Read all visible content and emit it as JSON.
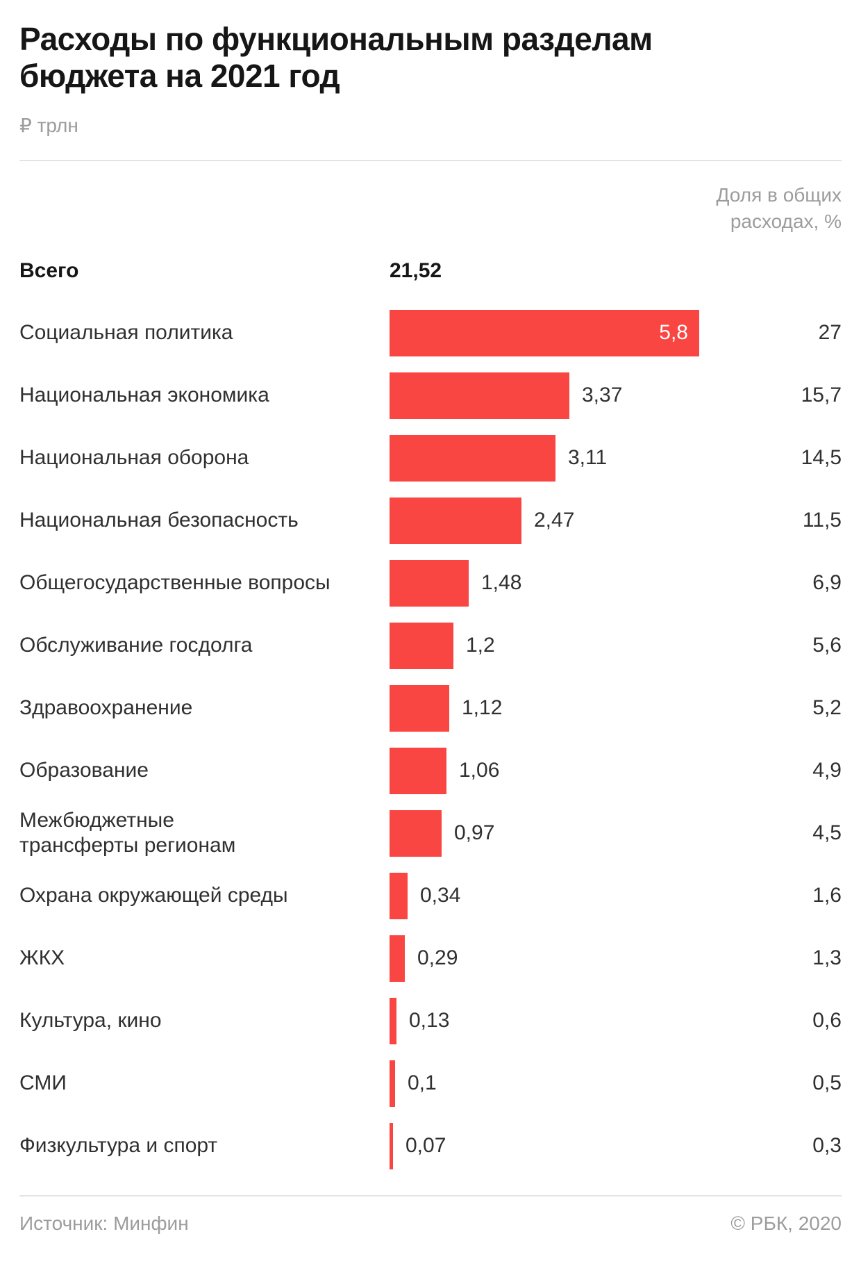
{
  "header": {
    "title": "Расходы по функциональным разделам\nбюджета на 2021 год",
    "units": "₽ трлн",
    "share_note": "Доля в общих\nрасходах, %"
  },
  "total_row": {
    "label": "Всего",
    "value_label": "21,52"
  },
  "chart_data": {
    "type": "bar",
    "orientation": "horizontal",
    "title": "Расходы по функциональным разделам бюджета на 2021 год",
    "unit": "₽ трлн",
    "xlim": [
      0,
      5.8
    ],
    "total": {
      "label": "Всего",
      "value": 21.52
    },
    "share_column_header": "Доля в общих расходах, %",
    "rows": [
      {
        "label": "Социальная политика",
        "value": 5.8,
        "value_label": "5,8",
        "share_pct": 27,
        "share_label": "27"
      },
      {
        "label": "Национальная экономика",
        "value": 3.37,
        "value_label": "3,37",
        "share_pct": 15.7,
        "share_label": "15,7"
      },
      {
        "label": "Национальная оборона",
        "value": 3.11,
        "value_label": "3,11",
        "share_pct": 14.5,
        "share_label": "14,5"
      },
      {
        "label": "Национальная безопасность",
        "value": 2.47,
        "value_label": "2,47",
        "share_pct": 11.5,
        "share_label": "11,5"
      },
      {
        "label": "Общегосударственные вопросы",
        "value": 1.48,
        "value_label": "1,48",
        "share_pct": 6.9,
        "share_label": "6,9"
      },
      {
        "label": "Обслуживание госдолга",
        "value": 1.2,
        "value_label": "1,2",
        "share_pct": 5.6,
        "share_label": "5,6"
      },
      {
        "label": "Здравоохранение",
        "value": 1.12,
        "value_label": "1,12",
        "share_pct": 5.2,
        "share_label": "5,2"
      },
      {
        "label": "Образование",
        "value": 1.06,
        "value_label": "1,06",
        "share_pct": 4.9,
        "share_label": "4,9"
      },
      {
        "label": "Межбюджетные\nтрансферты регионам",
        "value": 0.97,
        "value_label": "0,97",
        "share_pct": 4.5,
        "share_label": "4,5"
      },
      {
        "label": "Охрана окружающей среды",
        "value": 0.34,
        "value_label": "0,34",
        "share_pct": 1.6,
        "share_label": "1,6"
      },
      {
        "label": "ЖКХ",
        "value": 0.29,
        "value_label": "0,29",
        "share_pct": 1.3,
        "share_label": "1,3"
      },
      {
        "label": "Культура, кино",
        "value": 0.13,
        "value_label": "0,13",
        "share_pct": 0.6,
        "share_label": "0,6"
      },
      {
        "label": "СМИ",
        "value": 0.1,
        "value_label": "0,1",
        "share_pct": 0.5,
        "share_label": "0,5"
      },
      {
        "label": "Физкультура и спорт",
        "value": 0.07,
        "value_label": "0,07",
        "share_pct": 0.3,
        "share_label": "0,3"
      }
    ]
  },
  "colors": {
    "bar": "#FA4643",
    "title_text": "#161616",
    "body_text": "#303030",
    "muted_text": "#9C9C9C",
    "divider": "#E4E4E4"
  },
  "footer": {
    "source": "Источник: Минфин",
    "copyright": "© РБК, 2020"
  }
}
